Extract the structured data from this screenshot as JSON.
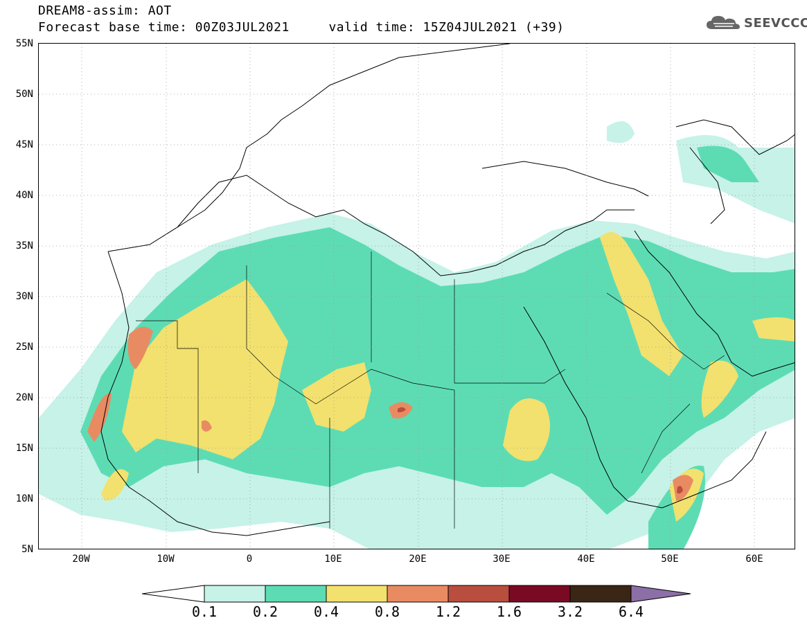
{
  "header": {
    "title_line1": "DREAM8-assim: AOT",
    "title_line2": "Forecast base time: 00Z03JUL2021     valid time: 15Z04JUL2021 (+39)"
  },
  "logo": {
    "text": "SEEVCCC",
    "icon": "cloud-icon"
  },
  "map": {
    "variable": "AOT",
    "lon_range": [
      -25,
      65
    ],
    "lat_range": [
      5,
      55
    ],
    "y_ticks": [
      "55N",
      "50N",
      "45N",
      "40N",
      "35N",
      "30N",
      "25N",
      "20N",
      "15N",
      "10N",
      "5N"
    ],
    "x_ticks": [
      "20W",
      "10W",
      "0",
      "10E",
      "20E",
      "30E",
      "40E",
      "50E",
      "60E"
    ],
    "gridlines": "dotted"
  },
  "colorbar": {
    "labels": [
      "0.1",
      "0.2",
      "0.4",
      "0.8",
      "1.2",
      "1.6",
      "3.2",
      "6.4"
    ],
    "colors": [
      "#c6f2e8",
      "#5ddcb4",
      "#f2e16e",
      "#e98b62",
      "#b94d3e",
      "#7a0a24",
      "#3b2514",
      "#8b6fa6"
    ],
    "under_color": "#ffffff"
  }
}
